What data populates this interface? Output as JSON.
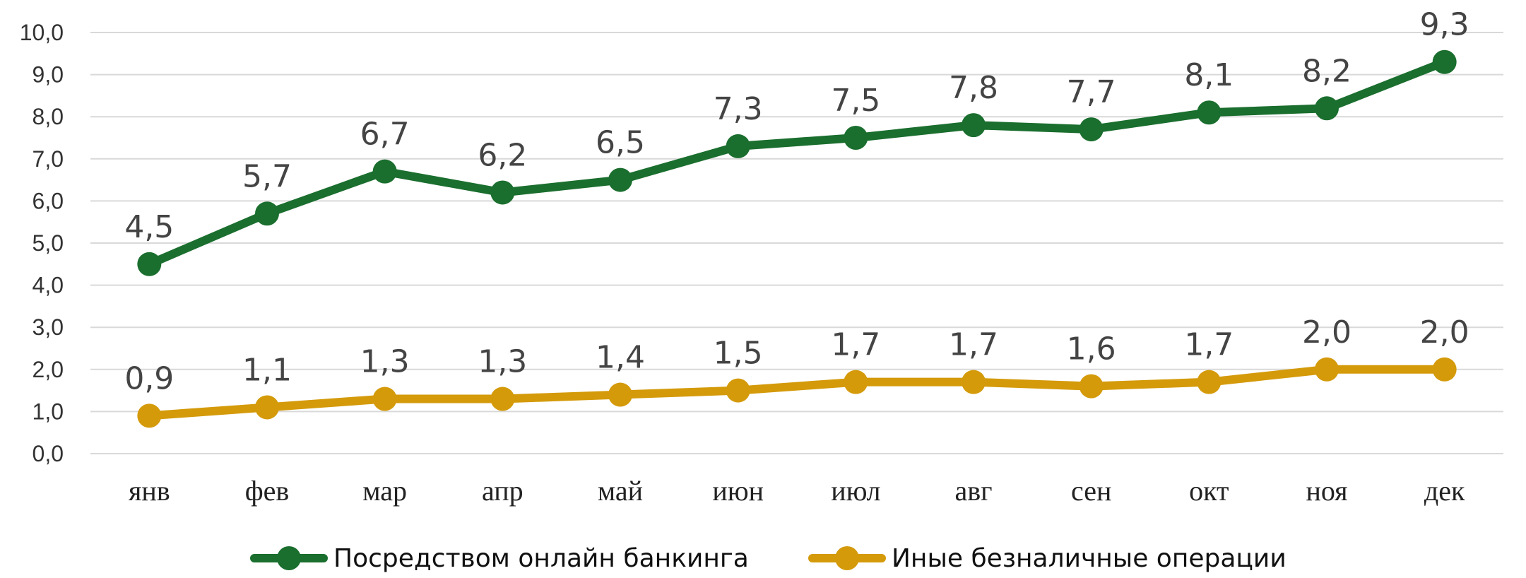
{
  "chart_data": {
    "type": "line",
    "categories": [
      "янв",
      "фев",
      "мар",
      "апр",
      "май",
      "июн",
      "июл",
      "авг",
      "сен",
      "окт",
      "ноя",
      "дек"
    ],
    "ylim": [
      0,
      10
    ],
    "yticks": [
      "0,0",
      "1,0",
      "2,0",
      "3,0",
      "4,0",
      "5,0",
      "6,0",
      "7,0",
      "8,0",
      "9,0",
      "10,0"
    ],
    "grid": true,
    "legend_position": "bottom",
    "series": [
      {
        "name": "Посредством онлайн банкинга",
        "color": "#1a6e2e",
        "values": [
          4.5,
          5.7,
          6.7,
          6.2,
          6.5,
          7.3,
          7.5,
          7.8,
          7.7,
          8.1,
          8.2,
          9.3
        ],
        "labels": [
          "4,5",
          "5,7",
          "6,7",
          "6,2",
          "6,5",
          "7,3",
          "7,5",
          "7,8",
          "7,7",
          "8,1",
          "8,2",
          "9,3"
        ]
      },
      {
        "name": "Иные безналичные операции",
        "color": "#d49a0a",
        "values": [
          0.9,
          1.1,
          1.3,
          1.3,
          1.4,
          1.5,
          1.7,
          1.7,
          1.6,
          1.7,
          2.0,
          2.0
        ],
        "labels": [
          "0,9",
          "1,1",
          "1,3",
          "1,3",
          "1,4",
          "1,5",
          "1,7",
          "1,7",
          "1,6",
          "1,7",
          "2,0",
          "2,0"
        ]
      }
    ]
  }
}
